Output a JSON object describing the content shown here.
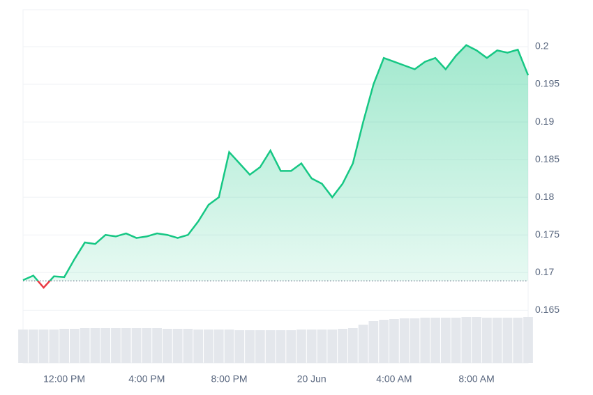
{
  "chart_data": {
    "type": "line",
    "categories": [
      null,
      null,
      null,
      null,
      "12:00 PM",
      null,
      null,
      null,
      null,
      null,
      null,
      null,
      "4:00 PM",
      null,
      null,
      null,
      null,
      null,
      null,
      null,
      "8:00 PM",
      null,
      null,
      null,
      null,
      null,
      null,
      null,
      "20 Jun",
      null,
      null,
      null,
      null,
      null,
      null,
      null,
      "4:00 AM",
      null,
      null,
      null,
      null,
      null,
      null,
      null,
      "8:00 AM",
      null,
      null,
      null,
      null,
      null
    ],
    "series": [
      {
        "name": "price",
        "color": "#16c784",
        "values": [
          0.169,
          0.1696,
          0.168,
          0.1695,
          0.1694,
          0.1718,
          0.174,
          0.1738,
          0.175,
          0.1748,
          0.1752,
          0.1746,
          0.1748,
          0.1752,
          0.175,
          0.1746,
          0.175,
          0.1768,
          0.179,
          0.18,
          0.186,
          0.1845,
          0.183,
          0.184,
          0.1862,
          0.1835,
          0.1835,
          0.1845,
          0.1825,
          0.1818,
          0.18,
          0.1818,
          0.1845,
          0.19,
          0.195,
          0.1985,
          0.198,
          0.1975,
          0.197,
          0.198,
          0.1985,
          0.197,
          0.1988,
          0.2002,
          0.1995,
          0.1985,
          0.1995,
          0.1992,
          0.1996,
          0.1962
        ]
      },
      {
        "name": "volume",
        "color": "#e4e7ec",
        "values": [
          48,
          48,
          48,
          48,
          49,
          49,
          50,
          50,
          50,
          50,
          50,
          50,
          50,
          50,
          49,
          49,
          49,
          48,
          48,
          48,
          48,
          47,
          47,
          47,
          47,
          47,
          47,
          48,
          48,
          48,
          48,
          49,
          50,
          55,
          60,
          62,
          63,
          64,
          64,
          65,
          65,
          65,
          65,
          66,
          66,
          65,
          65,
          65,
          65,
          66
        ]
      }
    ],
    "baseline": 0.1689,
    "down_color": "#ea3943",
    "ylim": [
      0.158,
      0.2049
    ],
    "yticks": [
      0.165,
      0.17,
      0.175,
      0.18,
      0.185,
      0.19,
      0.195,
      0.2
    ],
    "grid": true
  }
}
